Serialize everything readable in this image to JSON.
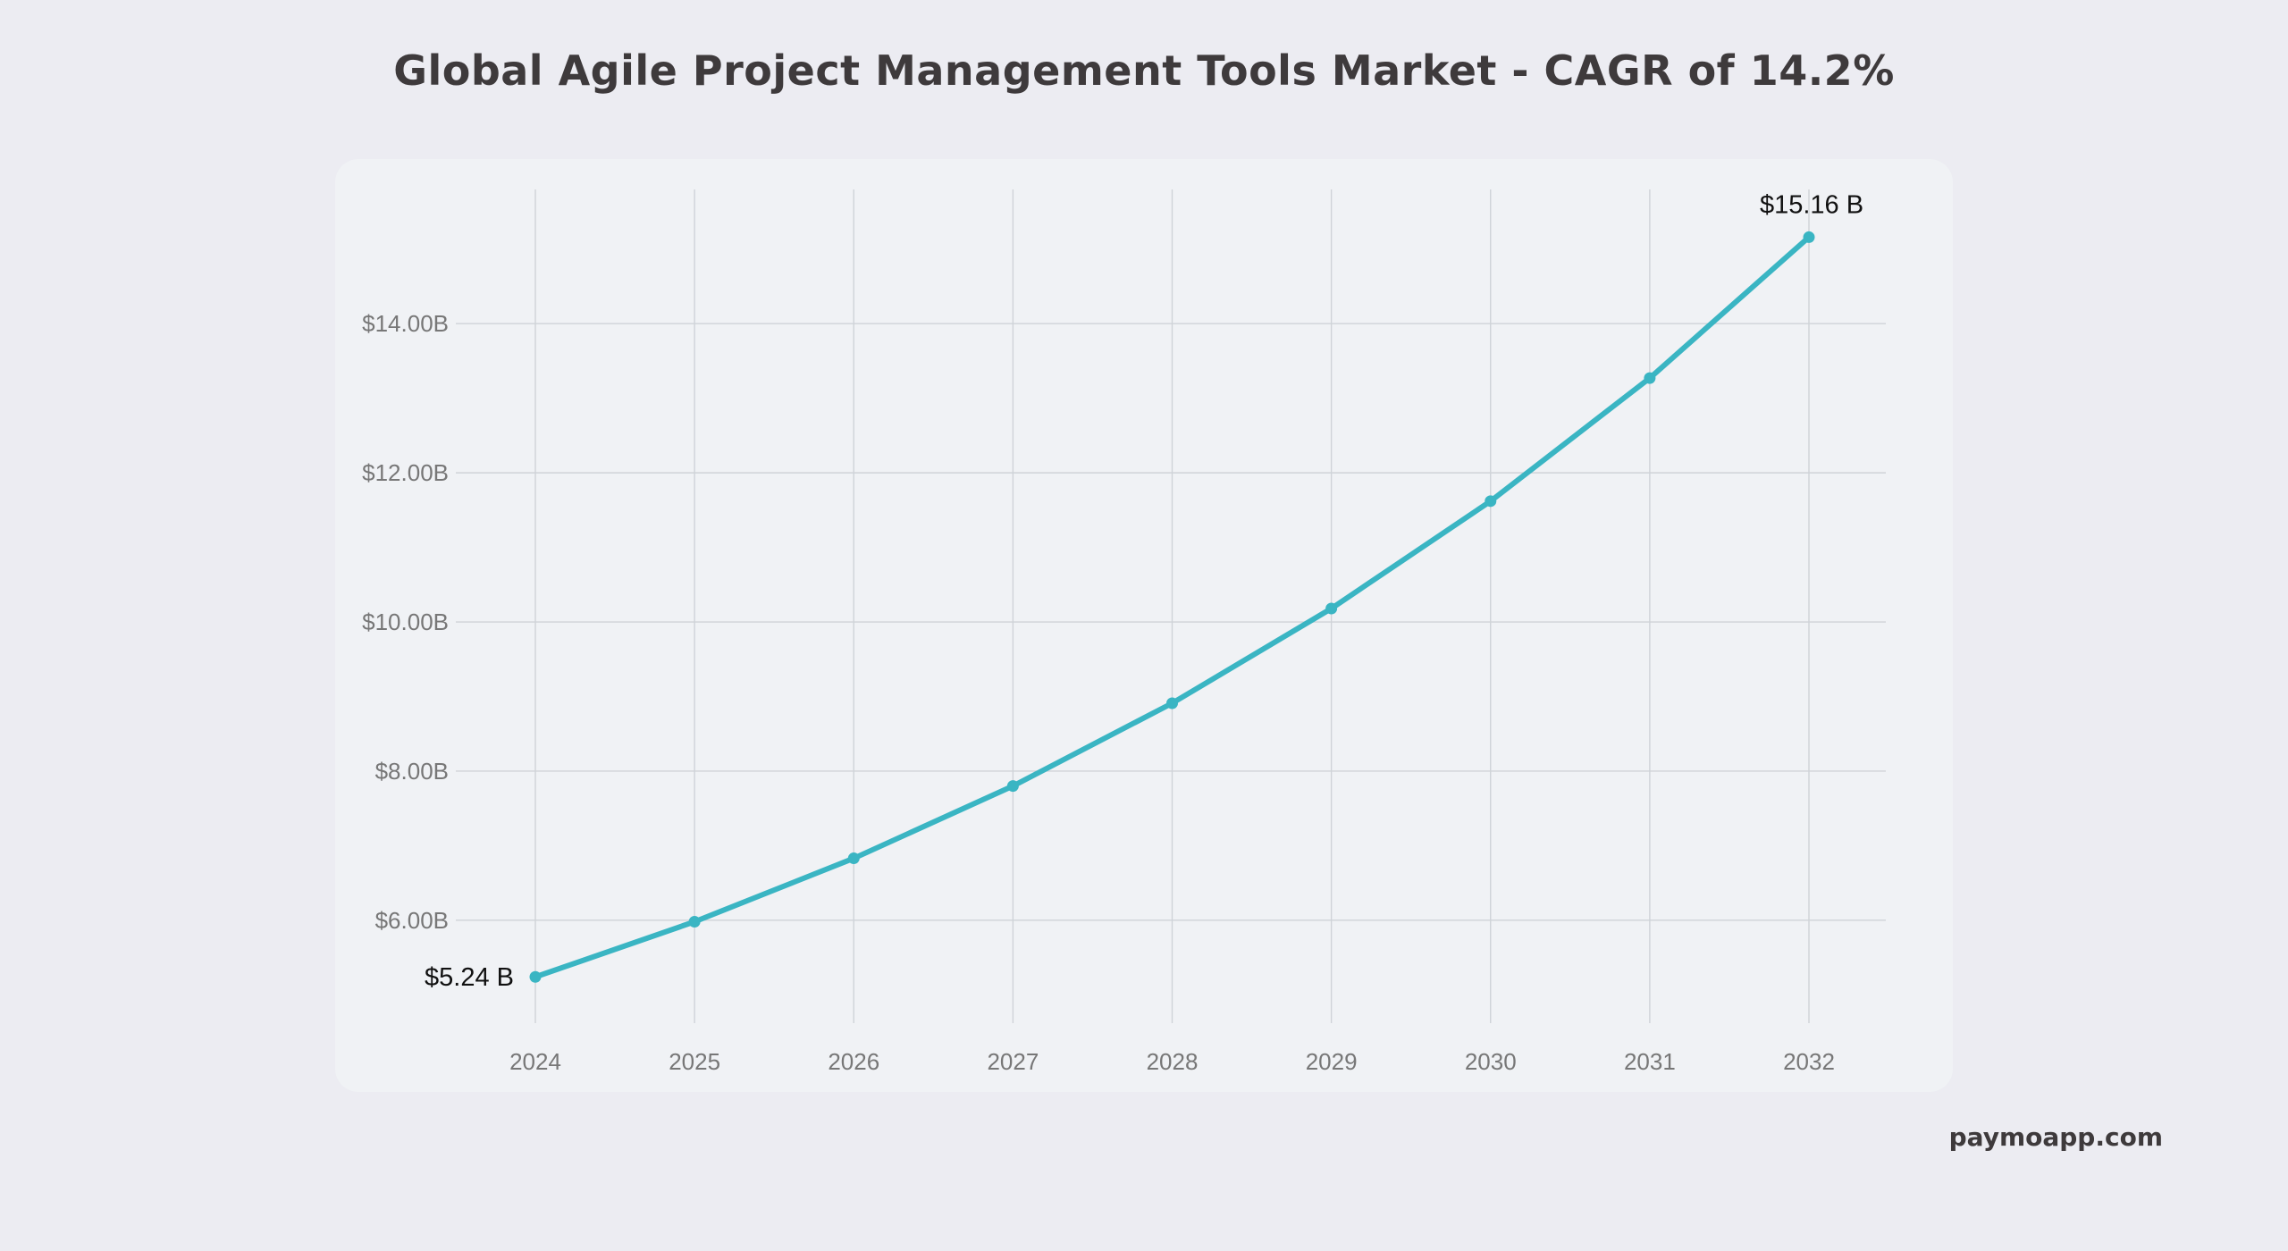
{
  "page": {
    "title": "Global Agile Project Management Tools Market - CAGR of 14.2%",
    "source": "paymoapp.com"
  },
  "colors": {
    "background": "#ECECF2",
    "card": "#F0F2F5",
    "line": "#3AB5C3",
    "grid": "#CFD3D8",
    "title": "#3E3A3C"
  },
  "chart_data": {
    "type": "line",
    "title": "Global Agile Project Management Tools Market - CAGR of 14.2%",
    "xlabel": "",
    "ylabel": "",
    "x": [
      "2024",
      "2025",
      "2026",
      "2027",
      "2028",
      "2029",
      "2030",
      "2031",
      "2032"
    ],
    "series": [
      {
        "values": [
          5.24,
          5.98,
          6.83,
          7.8,
          8.91,
          10.18,
          11.62,
          13.27,
          15.16
        ]
      }
    ],
    "yticks": [
      6,
      8,
      10,
      12,
      14
    ],
    "ytick_labels": [
      "$6.00B",
      "$8.00B",
      "$10.00B",
      "$12.00B",
      "$14.00B"
    ],
    "ylim": [
      4.5,
      15.8
    ],
    "grid": true,
    "annotations": [
      {
        "index": 0,
        "text": "$5.24 B",
        "placement": "left"
      },
      {
        "index": 8,
        "text": "$15.16 B",
        "placement": "above"
      }
    ]
  }
}
